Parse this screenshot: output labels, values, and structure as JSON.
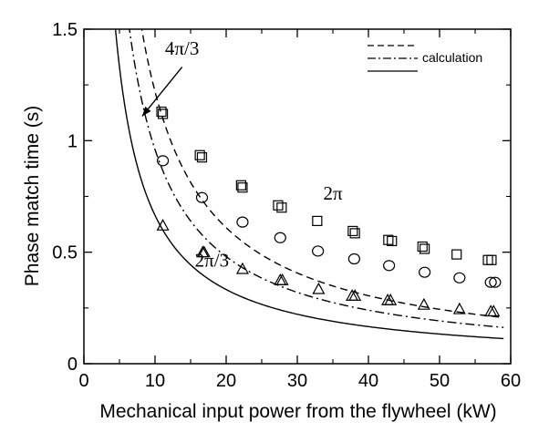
{
  "chart_data": {
    "type": "scatter",
    "title": "",
    "xlabel": "Mechanical input power from the flywheel (kW)",
    "ylabel": "Phase match time (s)",
    "xlim": [
      0,
      60
    ],
    "ylim": [
      0,
      1.5
    ],
    "x_ticks": [
      0,
      10,
      20,
      30,
      40,
      50,
      60
    ],
    "y_ticks": [
      0,
      0.5,
      1,
      1.5
    ],
    "x_tick_labels": [
      "0",
      "10",
      "20",
      "30",
      "40",
      "50",
      "60"
    ],
    "y_tick_labels": [
      "0",
      "0.5",
      "1",
      "1.5"
    ],
    "grid": false,
    "legend": {
      "placement": "top-right",
      "label": "calculation",
      "line_styles": [
        "dashed",
        "dash-dot",
        "solid"
      ]
    },
    "curves": [
      {
        "style": "dashed",
        "k": 12.2,
        "x_range": [
          8,
          59
        ]
      },
      {
        "style": "dash-dot",
        "k": 9.6,
        "x_range": [
          6.3,
          59
        ]
      },
      {
        "style": "solid",
        "k": 6.65,
        "x_range": [
          4.4,
          59
        ]
      }
    ],
    "series": [
      {
        "marker": "square",
        "points": [
          [
            10.9,
            1.13
          ],
          [
            11.1,
            1.12
          ],
          [
            16.3,
            0.935
          ],
          [
            16.6,
            0.925
          ],
          [
            22.1,
            0.8
          ],
          [
            22.3,
            0.79
          ],
          [
            27.3,
            0.71
          ],
          [
            27.8,
            0.7
          ],
          [
            32.8,
            0.64
          ],
          [
            37.8,
            0.595
          ],
          [
            38.1,
            0.585
          ],
          [
            42.8,
            0.555
          ],
          [
            43.3,
            0.55
          ],
          [
            47.6,
            0.525
          ],
          [
            47.9,
            0.515
          ],
          [
            52.4,
            0.49
          ],
          [
            56.8,
            0.465
          ],
          [
            57.3,
            0.465
          ]
        ]
      },
      {
        "marker": "circle",
        "points": [
          [
            11.1,
            0.91
          ],
          [
            16.6,
            0.745
          ],
          [
            22.3,
            0.635
          ],
          [
            27.6,
            0.565
          ],
          [
            32.9,
            0.505
          ],
          [
            38.0,
            0.47
          ],
          [
            42.9,
            0.44
          ],
          [
            47.9,
            0.41
          ],
          [
            52.8,
            0.385
          ],
          [
            57.2,
            0.365
          ],
          [
            57.8,
            0.365
          ]
        ]
      },
      {
        "marker": "triangle",
        "points": [
          [
            11.1,
            0.62
          ],
          [
            16.7,
            0.5
          ],
          [
            16.9,
            0.5
          ],
          [
            22.3,
            0.425
          ],
          [
            27.6,
            0.375
          ],
          [
            27.9,
            0.375
          ],
          [
            33.0,
            0.335
          ],
          [
            37.7,
            0.305
          ],
          [
            38.1,
            0.305
          ],
          [
            42.7,
            0.285
          ],
          [
            43.1,
            0.285
          ],
          [
            47.8,
            0.265
          ],
          [
            52.8,
            0.245
          ],
          [
            57.2,
            0.235
          ],
          [
            57.6,
            0.235
          ]
        ]
      }
    ],
    "annotations": [
      {
        "text": "4π/3",
        "x": 13.8,
        "y": 1.385
      },
      {
        "text": "2π",
        "x": 35.0,
        "y": 0.735
      },
      {
        "text": "2π/3",
        "x": 18.0,
        "y": 0.435
      }
    ],
    "arrow": {
      "from": [
        13.8,
        1.33
      ],
      "to": [
        8.2,
        1.11
      ]
    }
  }
}
